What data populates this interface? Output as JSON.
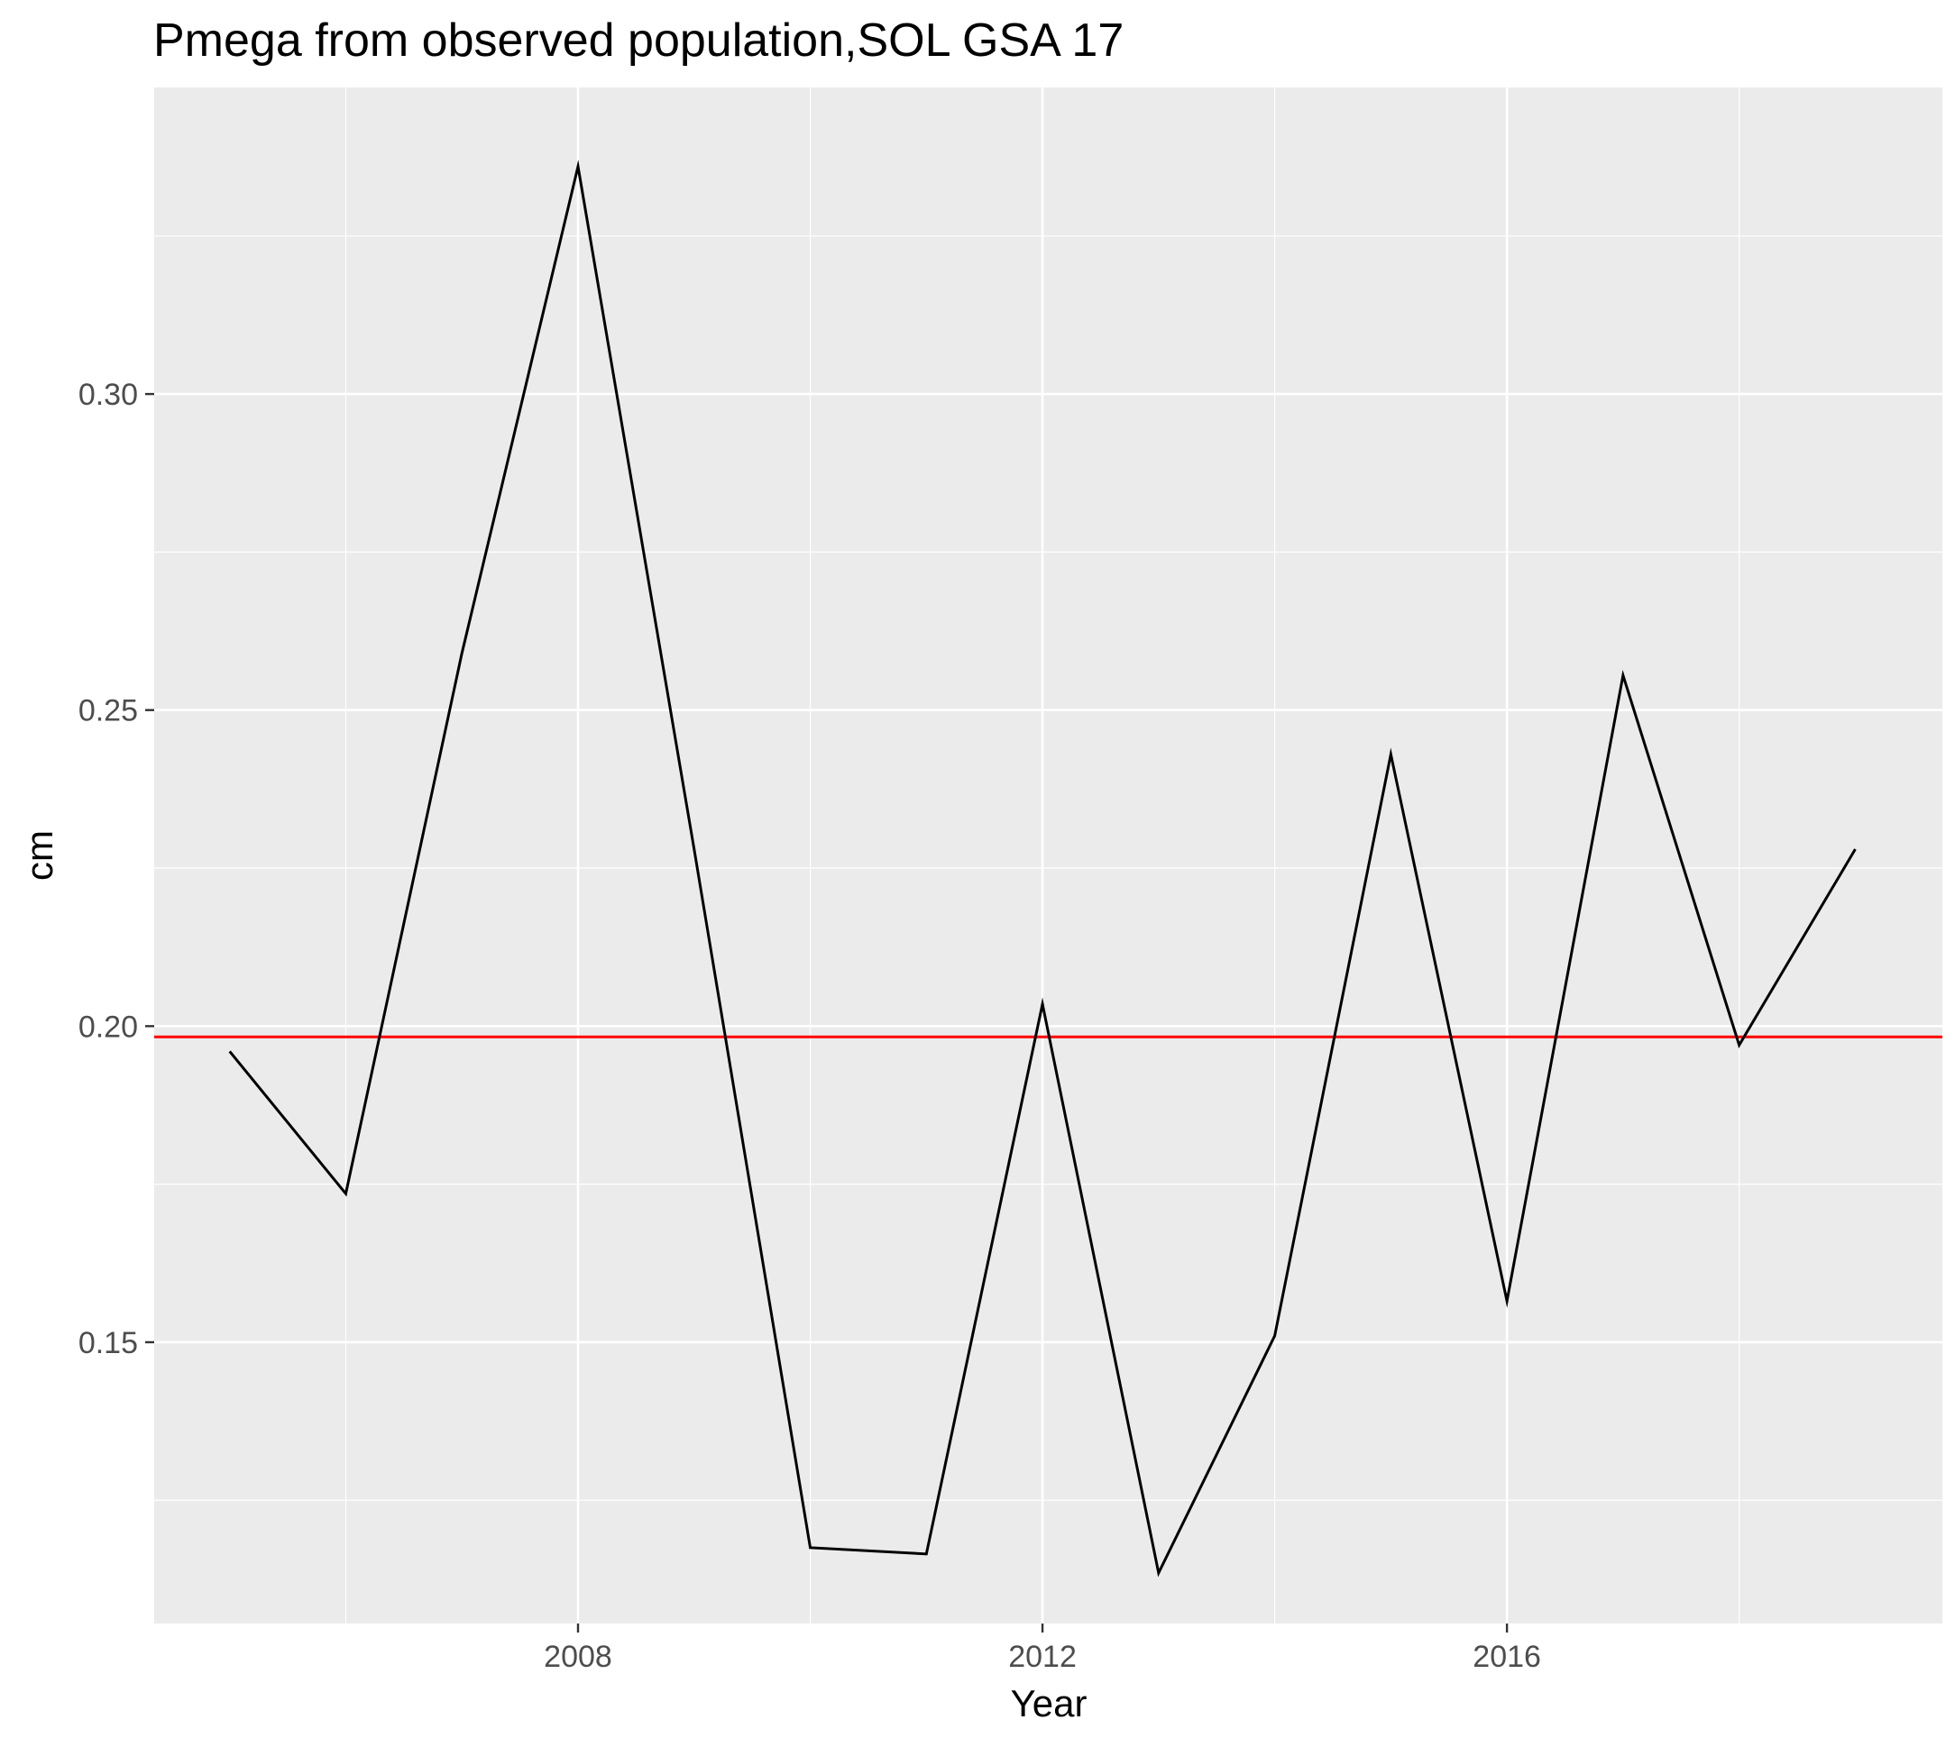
{
  "chart_data": {
    "type": "line",
    "title": "Pmega from observed population,SOL GSA 17",
    "xlabel": "Year",
    "ylabel": "cm",
    "xlim": [
      2004.35,
      2019.75
    ],
    "ylim": [
      0.1055,
      0.3485
    ],
    "x_ticks": [
      2008,
      2012,
      2016
    ],
    "x_tick_labels": [
      "2008",
      "2012",
      "2016"
    ],
    "x_minor_ticks": [
      2006,
      2010,
      2014,
      2018
    ],
    "y_ticks": [
      0.15,
      0.2,
      0.25,
      0.3
    ],
    "y_tick_labels": [
      "0.15",
      "0.20",
      "0.25",
      "0.30"
    ],
    "y_minor_ticks": [
      0.125,
      0.175,
      0.225,
      0.275,
      0.325
    ],
    "grid": true,
    "legend": "none",
    "series": [
      {
        "x": [
          2005,
          2006,
          2007,
          2008,
          2009,
          2010,
          2011,
          2012,
          2013,
          2014,
          2015,
          2016,
          2017,
          2018,
          2019
        ],
        "values": [
          0.196,
          0.1735,
          0.259,
          0.336,
          0.228,
          0.1175,
          0.1165,
          0.2035,
          0.1135,
          0.151,
          0.243,
          0.1565,
          0.2555,
          0.197,
          0.228
        ]
      }
    ],
    "reference_line": {
      "y": 0.1983
    },
    "colors": {
      "panel_background": "#ebebeb",
      "grid": "#ffffff",
      "series_line": "#000000",
      "reference_line": "#ff0000",
      "tick_mark": "#333333",
      "tick_label": "#4d4d4d"
    }
  }
}
